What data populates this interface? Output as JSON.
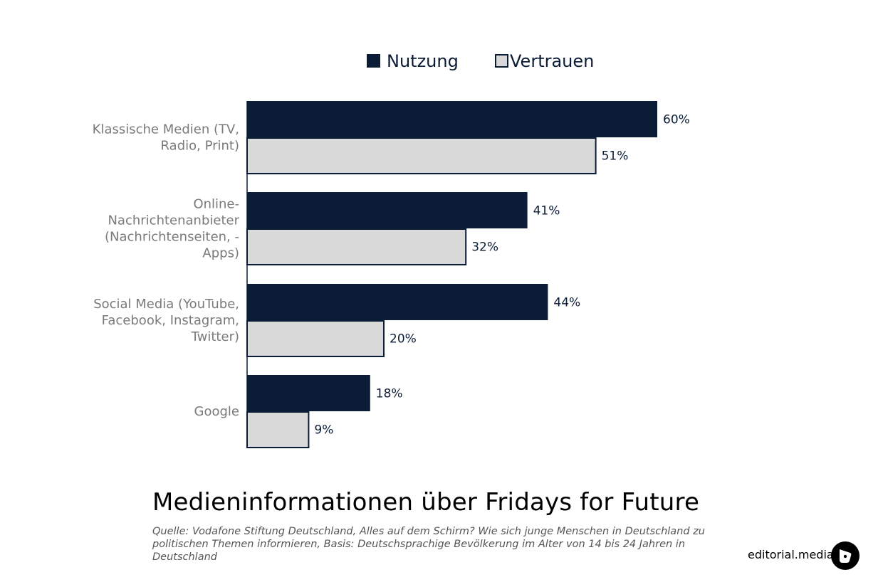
{
  "chart_data": {
    "type": "bar",
    "orientation": "horizontal",
    "categories": [
      [
        "Klassische Medien (TV,",
        "Radio, Print)"
      ],
      [
        "Online-",
        "Nachrichtenanbieter",
        "(Nachrichtenseiten, -",
        "Apps)"
      ],
      [
        "Social Media (YouTube,",
        "Facebook, Instagram,",
        "Twitter)"
      ],
      [
        "Google"
      ]
    ],
    "series": [
      {
        "name": "Nutzung",
        "values": [
          60,
          41,
          44,
          18
        ],
        "value_labels": [
          "60%",
          "41%",
          "44%",
          "18%"
        ]
      },
      {
        "name": "Vertrauen",
        "values": [
          51,
          32,
          20,
          9
        ],
        "value_labels": [
          "51%",
          "32%",
          "20%",
          "9%"
        ]
      }
    ],
    "xlim": [
      0,
      60
    ],
    "grid": false,
    "legend_position": "top-center",
    "title": "Medieninformationen über Fridays for Future"
  },
  "colors": {
    "nutzung": "#0b1c36",
    "vertrauen": "#d9d9d9",
    "outline": "#0b1c36"
  },
  "source": "Quelle: Vodafone Stiftung Deutschland, Alles auf dem Schirm? Wie sich junge Menschen in Deutschland zu politischen Themen informieren, Basis: Deutschsprachige Bevölkerung im Alter von 14 bis 24 Jahren in Deutschland",
  "brand": "editorial.media",
  "logo_icon": "editorial-media-logo-icon"
}
